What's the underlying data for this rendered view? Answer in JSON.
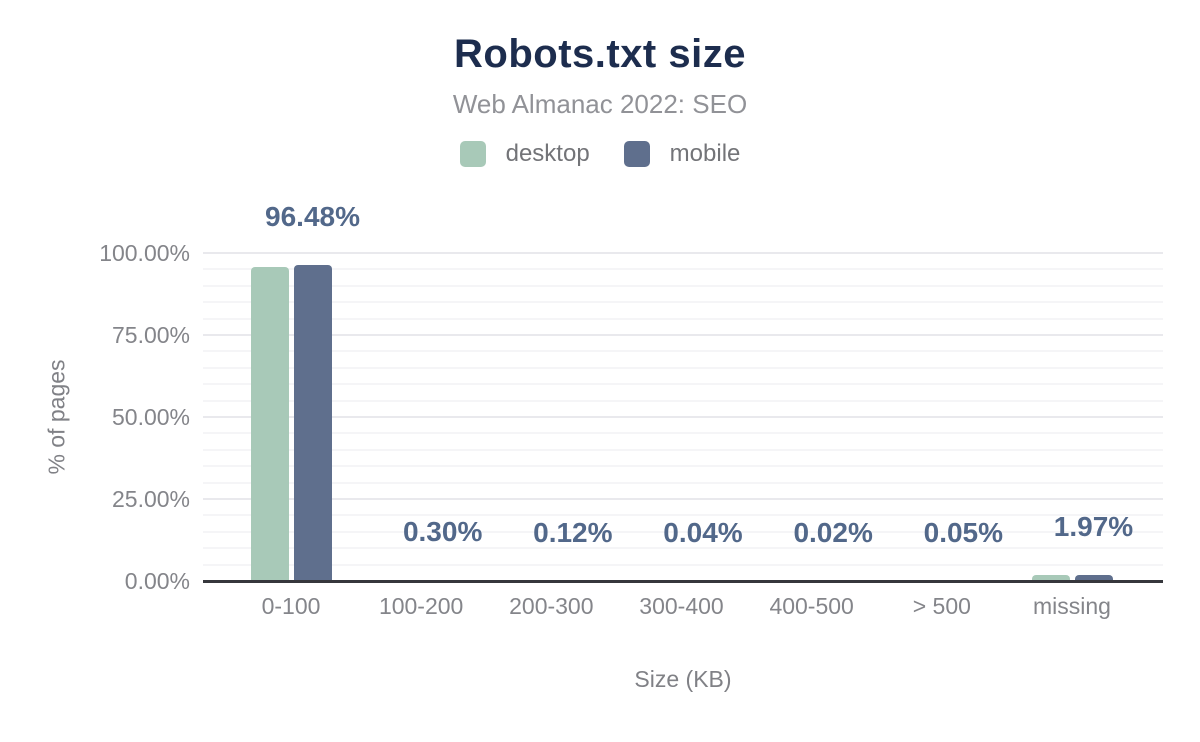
{
  "header": {
    "title": "Robots.txt size",
    "subtitle": "Web Almanac 2022: SEO"
  },
  "legend": {
    "items": [
      {
        "label": "desktop",
        "color": "#a8c9b8"
      },
      {
        "label": "mobile",
        "color": "#5f6f8d"
      }
    ]
  },
  "colors": {
    "title": "#1d2d4e",
    "subtitle": "#919297",
    "data_label": "#52688a",
    "axis_text": "#84858a",
    "axis_line": "#36373c",
    "desktop_bar": "#a8c9b8",
    "mobile_bar": "#5f6f8d"
  },
  "chart_data": {
    "type": "bar",
    "title": "Robots.txt size",
    "subtitle": "Web Almanac 2022: SEO",
    "xlabel": "Size (KB)",
    "ylabel": "% of pages",
    "categories": [
      "0-100",
      "100-200",
      "200-300",
      "300-400",
      "400-500",
      "> 500",
      "missing"
    ],
    "series": [
      {
        "name": "desktop",
        "color": "#a8c9b8",
        "values": [
          95.7,
          0.3,
          0.12,
          0.04,
          0.02,
          0.05,
          1.8
        ]
      },
      {
        "name": "mobile",
        "color": "#5f6f8d",
        "values": [
          96.48,
          0.3,
          0.12,
          0.04,
          0.02,
          0.05,
          1.97
        ]
      }
    ],
    "data_labels": [
      "96.48%",
      "0.30%",
      "0.12%",
      "0.04%",
      "0.02%",
      "0.05%",
      "1.97%"
    ],
    "yticks": [
      {
        "label": "0.00%",
        "value": 0
      },
      {
        "label": "25.00%",
        "value": 25
      },
      {
        "label": "50.00%",
        "value": 50
      },
      {
        "label": "75.00%",
        "value": 75
      },
      {
        "label": "100.00%",
        "value": 100
      }
    ],
    "ylim": [
      0,
      100
    ],
    "grid": "horizontal, minor every 5%, major every 25%",
    "legend_position": "top"
  }
}
